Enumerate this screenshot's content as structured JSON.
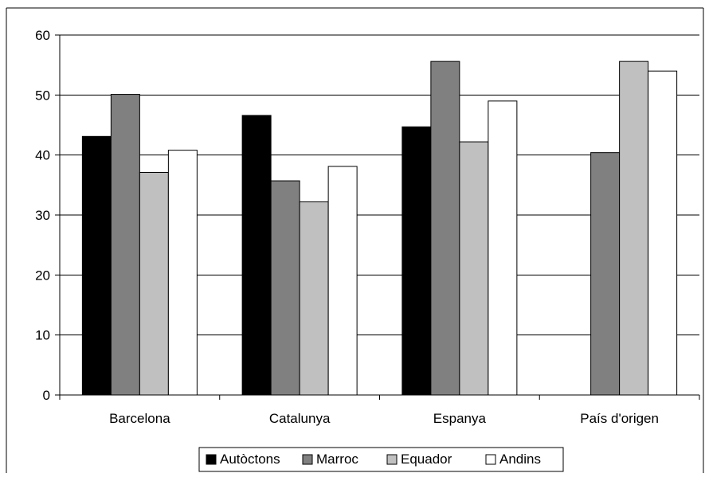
{
  "chart_data": {
    "type": "bar",
    "title": "",
    "xlabel": "",
    "ylabel": "",
    "categories": [
      "Barcelona",
      "Catalunya",
      "Espanya",
      "País d'origen"
    ],
    "series": [
      {
        "name": "Autòctons",
        "color": "#000000",
        "values": [
          43.1,
          46.6,
          44.7,
          null
        ]
      },
      {
        "name": "Marroc",
        "color": "#808080",
        "values": [
          50.1,
          35.7,
          55.6,
          40.4
        ]
      },
      {
        "name": "Equador",
        "color": "#c0c0c0",
        "values": [
          37.1,
          32.2,
          42.2,
          55.6
        ]
      },
      {
        "name": "Andins",
        "color": "#ffffff",
        "values": [
          40.8,
          38.1,
          49.0,
          54.0
        ]
      }
    ],
    "ylim": [
      0,
      60
    ],
    "yticks": [
      0,
      10,
      20,
      30,
      40,
      50,
      60
    ],
    "grid": true,
    "legend_position": "bottom"
  }
}
